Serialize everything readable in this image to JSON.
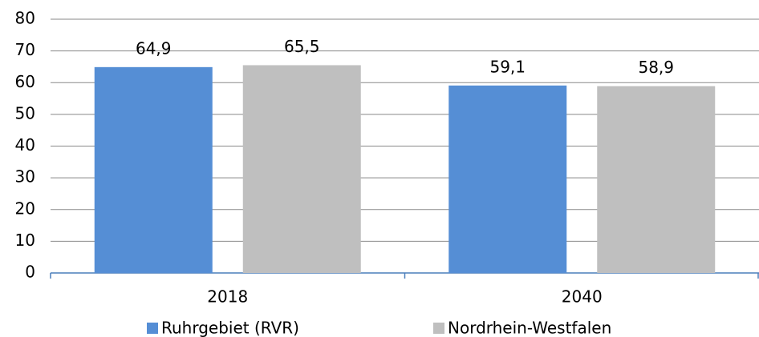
{
  "chart_data": {
    "type": "bar",
    "categories": [
      "2018",
      "2040"
    ],
    "series": [
      {
        "name": "Ruhrgebiet (RVR)",
        "color": "#558ed5",
        "values": [
          64.9,
          59.1
        ],
        "value_labels": [
          "64,9",
          "59,1"
        ]
      },
      {
        "name": "Nordrhein-Westfalen",
        "color": "#bfbfbf",
        "values": [
          65.5,
          58.9
        ],
        "value_labels": [
          "65,5",
          "58,9"
        ]
      }
    ],
    "ylim": [
      0,
      80
    ],
    "yticks": [
      0,
      10,
      20,
      30,
      40,
      50,
      60,
      70,
      80
    ],
    "grid": true,
    "legend": "bottom"
  }
}
